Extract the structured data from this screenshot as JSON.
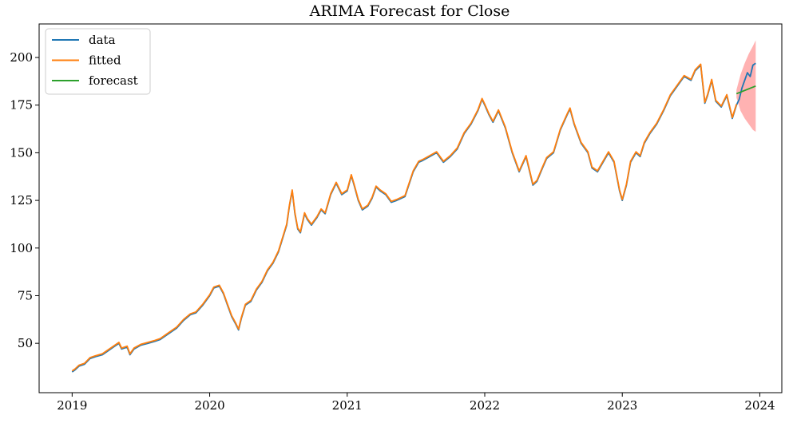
{
  "chart_data": {
    "type": "line",
    "title": "ARIMA Forecast for Close",
    "xlabel": "",
    "ylabel": "",
    "x_unit": "year (decimal)",
    "xlim": [
      2018.76,
      2024.16
    ],
    "ylim": [
      24.1,
      217.6
    ],
    "x_ticks": [
      2019,
      2020,
      2021,
      2022,
      2023,
      2024
    ],
    "x_tick_labels": [
      "2019",
      "2020",
      "2021",
      "2022",
      "2023",
      "2024"
    ],
    "y_ticks": [
      50,
      75,
      100,
      125,
      150,
      175,
      200
    ],
    "y_tick_labels": [
      "50",
      "75",
      "100",
      "125",
      "150",
      "175",
      "200"
    ],
    "grid": false,
    "legend_position": "upper-left",
    "legend": [
      "data",
      "fitted",
      "forecast"
    ],
    "colors": {
      "data": "#1f77b4",
      "fitted": "#ff7f0e",
      "forecast": "#2ca02c",
      "band": "#ff0000"
    },
    "series": [
      {
        "name": "data",
        "x": [
          2019.0,
          2019.02,
          2019.05,
          2019.09,
          2019.13,
          2019.17,
          2019.22,
          2019.26,
          2019.3,
          2019.34,
          2019.36,
          2019.4,
          2019.42,
          2019.45,
          2019.5,
          2019.55,
          2019.6,
          2019.64,
          2019.7,
          2019.76,
          2019.81,
          2019.86,
          2019.9,
          2019.95,
          2020.0,
          2020.03,
          2020.07,
          2020.1,
          2020.13,
          2020.16,
          2020.19,
          2020.21,
          2020.23,
          2020.26,
          2020.3,
          2020.34,
          2020.38,
          2020.42,
          2020.46,
          2020.5,
          2020.56,
          2020.58,
          2020.6,
          2020.62,
          2020.64,
          2020.66,
          2020.69,
          2020.71,
          2020.74,
          2020.76,
          2020.78,
          2020.81,
          2020.84,
          2020.88,
          2020.92,
          2020.96,
          2021.0,
          2021.03,
          2021.05,
          2021.08,
          2021.11,
          2021.15,
          2021.18,
          2021.21,
          2021.24,
          2021.28,
          2021.32,
          2021.36,
          2021.42,
          2021.48,
          2021.52,
          2021.55,
          2021.6,
          2021.65,
          2021.7,
          2021.75,
          2021.8,
          2021.85,
          2021.9,
          2021.95,
          2021.98,
          2022.0,
          2022.03,
          2022.06,
          2022.1,
          2022.15,
          2022.2,
          2022.25,
          2022.3,
          2022.35,
          2022.38,
          2022.42,
          2022.45,
          2022.5,
          2022.55,
          2022.6,
          2022.62,
          2022.65,
          2022.7,
          2022.75,
          2022.78,
          2022.82,
          2022.86,
          2022.9,
          2022.94,
          2022.98,
          2023.0,
          2023.03,
          2023.06,
          2023.1,
          2023.13,
          2023.16,
          2023.2,
          2023.25,
          2023.3,
          2023.35,
          2023.4,
          2023.45,
          2023.5,
          2023.53,
          2023.57,
          2023.6,
          2023.62,
          2023.65,
          2023.68,
          2023.72,
          2023.76,
          2023.8,
          2023.83,
          2023.85,
          2023.87,
          2023.89,
          2023.91,
          2023.93,
          2023.95,
          2023.97
        ],
        "values": [
          35,
          36,
          38,
          39,
          42,
          43,
          44,
          46,
          48,
          50,
          47,
          48,
          44,
          47,
          49,
          50,
          51,
          52,
          55,
          58,
          62,
          65,
          66,
          70,
          75,
          79,
          80,
          76,
          70,
          64,
          60,
          57,
          63,
          70,
          72,
          78,
          82,
          88,
          92,
          98,
          112,
          122,
          130,
          118,
          110,
          108,
          118,
          115,
          112,
          114,
          116,
          120,
          118,
          128,
          134,
          128,
          130,
          138,
          133,
          125,
          120,
          122,
          126,
          132,
          130,
          128,
          124,
          125,
          127,
          140,
          145,
          146,
          148,
          150,
          145,
          148,
          152,
          160,
          165,
          172,
          178,
          175,
          170,
          166,
          172,
          163,
          150,
          140,
          148,
          133,
          135,
          142,
          147,
          150,
          162,
          170,
          173,
          165,
          155,
          150,
          142,
          140,
          145,
          150,
          145,
          130,
          125,
          133,
          145,
          150,
          148,
          155,
          160,
          165,
          172,
          180,
          185,
          190,
          188,
          193,
          196,
          176,
          180,
          188,
          177,
          174,
          180,
          168,
          175,
          178,
          184,
          188,
          192,
          190,
          196,
          197
        ]
      },
      {
        "name": "fitted",
        "x": [
          2019.0,
          2019.02,
          2019.05,
          2019.09,
          2019.13,
          2019.17,
          2019.22,
          2019.26,
          2019.3,
          2019.34,
          2019.36,
          2019.4,
          2019.42,
          2019.45,
          2019.5,
          2019.55,
          2019.6,
          2019.64,
          2019.7,
          2019.76,
          2019.81,
          2019.86,
          2019.9,
          2019.95,
          2020.0,
          2020.03,
          2020.07,
          2020.1,
          2020.13,
          2020.16,
          2020.19,
          2020.21,
          2020.23,
          2020.26,
          2020.3,
          2020.34,
          2020.38,
          2020.42,
          2020.46,
          2020.5,
          2020.56,
          2020.58,
          2020.6,
          2020.62,
          2020.64,
          2020.66,
          2020.69,
          2020.71,
          2020.74,
          2020.76,
          2020.78,
          2020.81,
          2020.84,
          2020.88,
          2020.92,
          2020.96,
          2021.0,
          2021.03,
          2021.05,
          2021.08,
          2021.11,
          2021.15,
          2021.18,
          2021.21,
          2021.24,
          2021.28,
          2021.32,
          2021.36,
          2021.42,
          2021.48,
          2021.52,
          2021.55,
          2021.6,
          2021.65,
          2021.7,
          2021.75,
          2021.8,
          2021.85,
          2021.9,
          2021.95,
          2021.98,
          2022.0,
          2022.03,
          2022.06,
          2022.1,
          2022.15,
          2022.2,
          2022.25,
          2022.3,
          2022.35,
          2022.38,
          2022.42,
          2022.45,
          2022.5,
          2022.55,
          2022.6,
          2022.62,
          2022.65,
          2022.7,
          2022.75,
          2022.78,
          2022.82,
          2022.86,
          2022.9,
          2022.94,
          2022.98,
          2023.0,
          2023.03,
          2023.06,
          2023.1,
          2023.13,
          2023.16,
          2023.2,
          2023.25,
          2023.3,
          2023.35,
          2023.4,
          2023.45,
          2023.5,
          2023.53,
          2023.57,
          2023.6,
          2023.62,
          2023.65,
          2023.68,
          2023.72,
          2023.76,
          2023.8,
          2023.83
        ],
        "values": [
          35.5,
          36.5,
          38.5,
          39.5,
          42.5,
          43.5,
          44.5,
          46.5,
          48.5,
          50.5,
          47.5,
          48.5,
          44.5,
          47.5,
          49.5,
          50.5,
          51.5,
          52.5,
          55.5,
          58.5,
          62.5,
          65.5,
          66.5,
          70.5,
          75.5,
          79.5,
          80.5,
          76.5,
          70.5,
          64.5,
          60.5,
          57.5,
          63.5,
          70.5,
          72.5,
          78.5,
          82.5,
          88.5,
          92.5,
          98.5,
          112.5,
          122.5,
          130.5,
          118.5,
          110.5,
          108.5,
          118.5,
          115.5,
          112.5,
          114.5,
          116.5,
          120.5,
          118.5,
          128.5,
          134.5,
          128.5,
          130.5,
          138.5,
          133.5,
          125.5,
          120.5,
          122.5,
          126.5,
          132.5,
          130.5,
          128.5,
          124.5,
          125.5,
          127.5,
          140.5,
          145.5,
          146.5,
          148.5,
          150.5,
          145.5,
          148.5,
          152.5,
          160.5,
          165.5,
          172.5,
          178.5,
          175.5,
          170.5,
          166.5,
          172.5,
          163.5,
          150.5,
          140.5,
          148.5,
          133.5,
          135.5,
          142.5,
          147.5,
          150.5,
          162.5,
          170.5,
          173.5,
          165.5,
          155.5,
          150.5,
          142.5,
          140.5,
          145.5,
          150.5,
          145.5,
          130.5,
          125.5,
          133.5,
          145.5,
          150.5,
          148.5,
          155.5,
          160.5,
          165.5,
          172.5,
          180.5,
          185.5,
          190.5,
          188.5,
          193.5,
          196.5,
          176.5,
          180.5,
          188.5,
          177.5,
          174.5,
          180.5,
          168.5,
          175.5
        ]
      },
      {
        "name": "forecast",
        "x": [
          2023.83,
          2023.97
        ],
        "values": [
          181,
          185
        ]
      }
    ],
    "confidence_interval": {
      "x": [
        2023.83,
        2023.86,
        2023.89,
        2023.92,
        2023.95,
        2023.97
      ],
      "lower": [
        179,
        172,
        168,
        165,
        162,
        161
      ],
      "upper": [
        183,
        191,
        197,
        202,
        206,
        209
      ]
    }
  }
}
